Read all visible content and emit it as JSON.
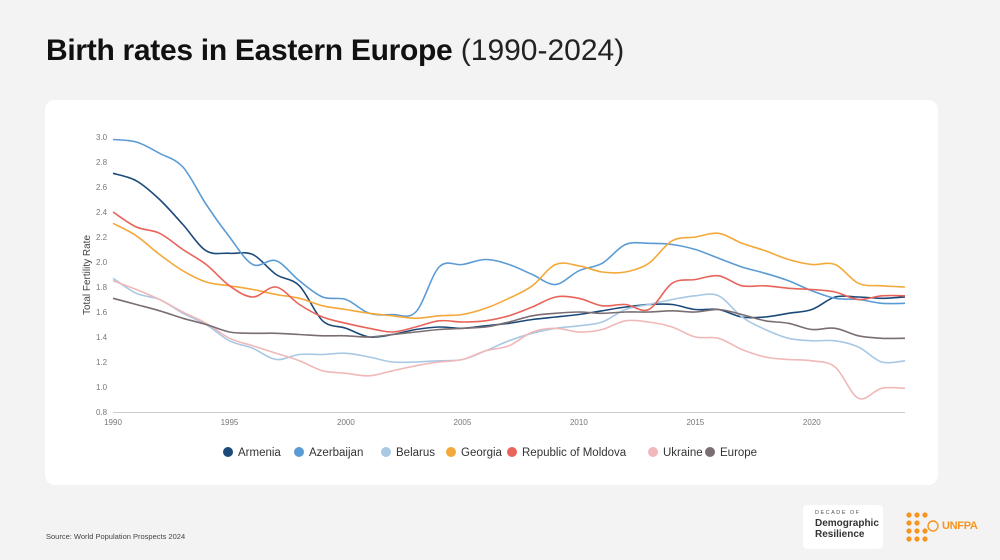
{
  "title": {
    "main": "Birth rates in Eastern Europe",
    "sub": "(1990-2024)"
  },
  "source": "Source: World Population Prospects 2024",
  "logos": {
    "dodr_line1": "DECADE OF",
    "dodr_line2": "Demographic",
    "dodr_line3": "Resilience",
    "unfpa": "UNFPA"
  },
  "chart_data": {
    "type": "line",
    "title": "",
    "xlabel": "",
    "ylabel": "Total Fertility Rate",
    "xlim": [
      1990,
      2024
    ],
    "ylim": [
      0.8,
      3.0
    ],
    "xticks": [
      "1990",
      "1995",
      "2000",
      "2005",
      "2010",
      "2015",
      "2020"
    ],
    "yticks": [
      "0.8",
      "1.0",
      "1.2",
      "1.4",
      "1.6",
      "1.8",
      "2.0",
      "2.2",
      "2.4",
      "2.6",
      "2.8",
      "3.0"
    ],
    "grid": false,
    "legend_position": "bottom",
    "x": [
      1990,
      1991,
      1992,
      1993,
      1994,
      1995,
      1996,
      1997,
      1998,
      1999,
      2000,
      2001,
      2002,
      2003,
      2004,
      2005,
      2006,
      2007,
      2008,
      2009,
      2010,
      2011,
      2012,
      2013,
      2014,
      2015,
      2016,
      2017,
      2018,
      2019,
      2020,
      2021,
      2022,
      2023,
      2024
    ],
    "series": [
      {
        "name": "Armenia",
        "color": "#1b4a7a",
        "values": [
          2.71,
          2.65,
          2.5,
          2.3,
          2.09,
          2.07,
          2.06,
          1.9,
          1.81,
          1.53,
          1.47,
          1.4,
          1.42,
          1.46,
          1.48,
          1.47,
          1.49,
          1.51,
          1.54,
          1.56,
          1.58,
          1.61,
          1.64,
          1.66,
          1.66,
          1.62,
          1.62,
          1.56,
          1.56,
          1.59,
          1.62,
          1.72,
          1.72,
          1.71,
          1.72
        ]
      },
      {
        "name": "Azerbaijan",
        "color": "#5b9bd5",
        "values": [
          2.98,
          2.96,
          2.87,
          2.76,
          2.46,
          2.2,
          1.98,
          2.01,
          1.85,
          1.72,
          1.7,
          1.59,
          1.58,
          1.6,
          1.96,
          1.98,
          2.02,
          1.98,
          1.9,
          1.82,
          1.93,
          1.99,
          2.14,
          2.15,
          2.14,
          2.1,
          2.03,
          1.96,
          1.91,
          1.85,
          1.77,
          1.71,
          1.7,
          1.67,
          1.67
        ]
      },
      {
        "name": "Belarus",
        "color": "#a8c8e4",
        "values": [
          1.87,
          1.75,
          1.7,
          1.59,
          1.5,
          1.37,
          1.31,
          1.22,
          1.26,
          1.26,
          1.27,
          1.24,
          1.2,
          1.2,
          1.21,
          1.22,
          1.29,
          1.37,
          1.43,
          1.47,
          1.49,
          1.52,
          1.62,
          1.66,
          1.7,
          1.73,
          1.73,
          1.56,
          1.46,
          1.39,
          1.37,
          1.37,
          1.32,
          1.2,
          1.21
        ]
      },
      {
        "name": "Georgia",
        "color": "#f5a83a",
        "values": [
          2.31,
          2.21,
          2.06,
          1.93,
          1.84,
          1.81,
          1.78,
          1.74,
          1.71,
          1.65,
          1.62,
          1.59,
          1.57,
          1.55,
          1.57,
          1.58,
          1.63,
          1.71,
          1.81,
          1.98,
          1.97,
          1.92,
          1.92,
          1.99,
          2.17,
          2.2,
          2.23,
          2.15,
          2.09,
          2.02,
          1.98,
          1.98,
          1.83,
          1.81,
          1.8
        ]
      },
      {
        "name": "Republic of Moldova",
        "color": "#e8645a",
        "values": [
          2.4,
          2.28,
          2.23,
          2.1,
          1.98,
          1.81,
          1.72,
          1.8,
          1.66,
          1.56,
          1.51,
          1.47,
          1.44,
          1.48,
          1.53,
          1.52,
          1.53,
          1.57,
          1.64,
          1.72,
          1.71,
          1.65,
          1.66,
          1.62,
          1.83,
          1.86,
          1.89,
          1.81,
          1.81,
          1.79,
          1.78,
          1.76,
          1.7,
          1.73,
          1.73
        ]
      },
      {
        "name": "Ukraine",
        "color": "#f0b8b8",
        "values": [
          1.85,
          1.78,
          1.7,
          1.6,
          1.51,
          1.39,
          1.33,
          1.27,
          1.21,
          1.13,
          1.11,
          1.09,
          1.13,
          1.17,
          1.2,
          1.22,
          1.29,
          1.33,
          1.44,
          1.47,
          1.44,
          1.46,
          1.53,
          1.52,
          1.48,
          1.4,
          1.39,
          1.3,
          1.24,
          1.22,
          1.21,
          1.16,
          0.91,
          0.99,
          0.99
        ]
      },
      {
        "name": "Europe",
        "color": "#7a6e72",
        "values": [
          1.71,
          1.66,
          1.61,
          1.55,
          1.5,
          1.44,
          1.43,
          1.43,
          1.42,
          1.41,
          1.41,
          1.4,
          1.42,
          1.44,
          1.46,
          1.47,
          1.48,
          1.52,
          1.57,
          1.59,
          1.6,
          1.59,
          1.6,
          1.6,
          1.61,
          1.6,
          1.62,
          1.58,
          1.53,
          1.51,
          1.46,
          1.47,
          1.41,
          1.39,
          1.39
        ]
      }
    ]
  }
}
